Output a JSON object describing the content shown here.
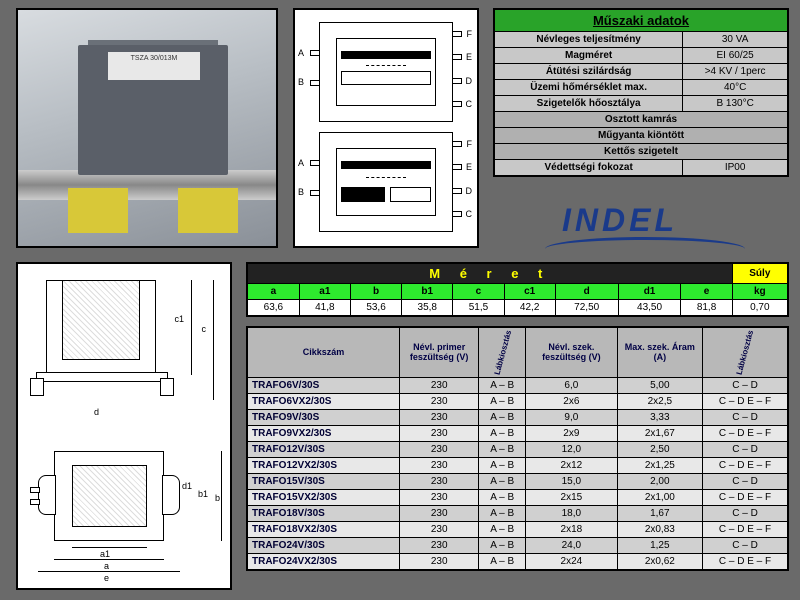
{
  "photo_label": "TSZA 30/013M",
  "specs": {
    "title": "Műszaki adatok",
    "rows": [
      {
        "label": "Névleges teljesítmény",
        "value": "30 VA"
      },
      {
        "label": "Magméret",
        "value": "EI 60/25"
      },
      {
        "label": "Átütési szilárdság",
        "value": ">4 KV / 1perc"
      },
      {
        "label": "Üzemi hőmérséklet max.",
        "value": "40°C"
      },
      {
        "label": "Szigetelők hőosztálya",
        "value": "B 130°C"
      }
    ],
    "full_rows": [
      "Osztott kamrás",
      "Műgyanta kiöntött",
      "Kettős szigetelt"
    ],
    "last": {
      "label": "Védettségi fokozat",
      "value": "IP00"
    }
  },
  "pins": {
    "left": [
      "A",
      "B"
    ],
    "right": [
      "F",
      "E",
      "D",
      "C"
    ]
  },
  "logo": "INDEL",
  "dims_labels": [
    "a",
    "a1",
    "b",
    "b1",
    "c",
    "c1",
    "d",
    "d1",
    "e"
  ],
  "meret": {
    "title": "M é r e t",
    "suly": "Súly",
    "headers": [
      "a",
      "a1",
      "b",
      "b1",
      "c",
      "c1",
      "d",
      "d1",
      "e",
      "kg"
    ],
    "values": [
      "63,6",
      "41,8",
      "53,6",
      "35,8",
      "51,5",
      "42,2",
      "72,50",
      "43,50",
      "81,8",
      "0,70"
    ]
  },
  "products": {
    "headers": [
      "Cikkszám",
      "Névl. primer feszültség (V)",
      "Lábkiosztás",
      "Névl. szek. feszültség (V)",
      "Max. szek. Áram (A)",
      "Lábkiosztás"
    ],
    "col_widths": [
      "150px",
      "78px",
      "46px",
      "90px",
      "84px",
      "84px"
    ],
    "rows": [
      [
        "TRAFO6V/30S",
        "230",
        "A – B",
        "6,0",
        "5,00",
        "C – D"
      ],
      [
        "TRAFO6VX2/30S",
        "230",
        "A – B",
        "2x6",
        "2x2,5",
        "C – D E – F"
      ],
      [
        "TRAFO9V/30S",
        "230",
        "A – B",
        "9,0",
        "3,33",
        "C – D"
      ],
      [
        "TRAFO9VX2/30S",
        "230",
        "A – B",
        "2x9",
        "2x1,67",
        "C – D E – F"
      ],
      [
        "TRAFO12V/30S",
        "230",
        "A – B",
        "12,0",
        "2,50",
        "C – D"
      ],
      [
        "TRAFO12VX2/30S",
        "230",
        "A – B",
        "2x12",
        "2x1,25",
        "C – D E – F"
      ],
      [
        "TRAFO15V/30S",
        "230",
        "A – B",
        "15,0",
        "2,00",
        "C – D"
      ],
      [
        "TRAFO15VX2/30S",
        "230",
        "A – B",
        "2x15",
        "2x1,00",
        "C – D E – F"
      ],
      [
        "TRAFO18V/30S",
        "230",
        "A – B",
        "18,0",
        "1,67",
        "C – D"
      ],
      [
        "TRAFO18VX2/30S",
        "230",
        "A – B",
        "2x18",
        "2x0,83",
        "C – D E – F"
      ],
      [
        "TRAFO24V/30S",
        "230",
        "A – B",
        "24,0",
        "1,25",
        "C – D"
      ],
      [
        "TRAFO24VX2/30S",
        "230",
        "A – B",
        "2x24",
        "2x0,62",
        "C – D E – F"
      ]
    ]
  }
}
